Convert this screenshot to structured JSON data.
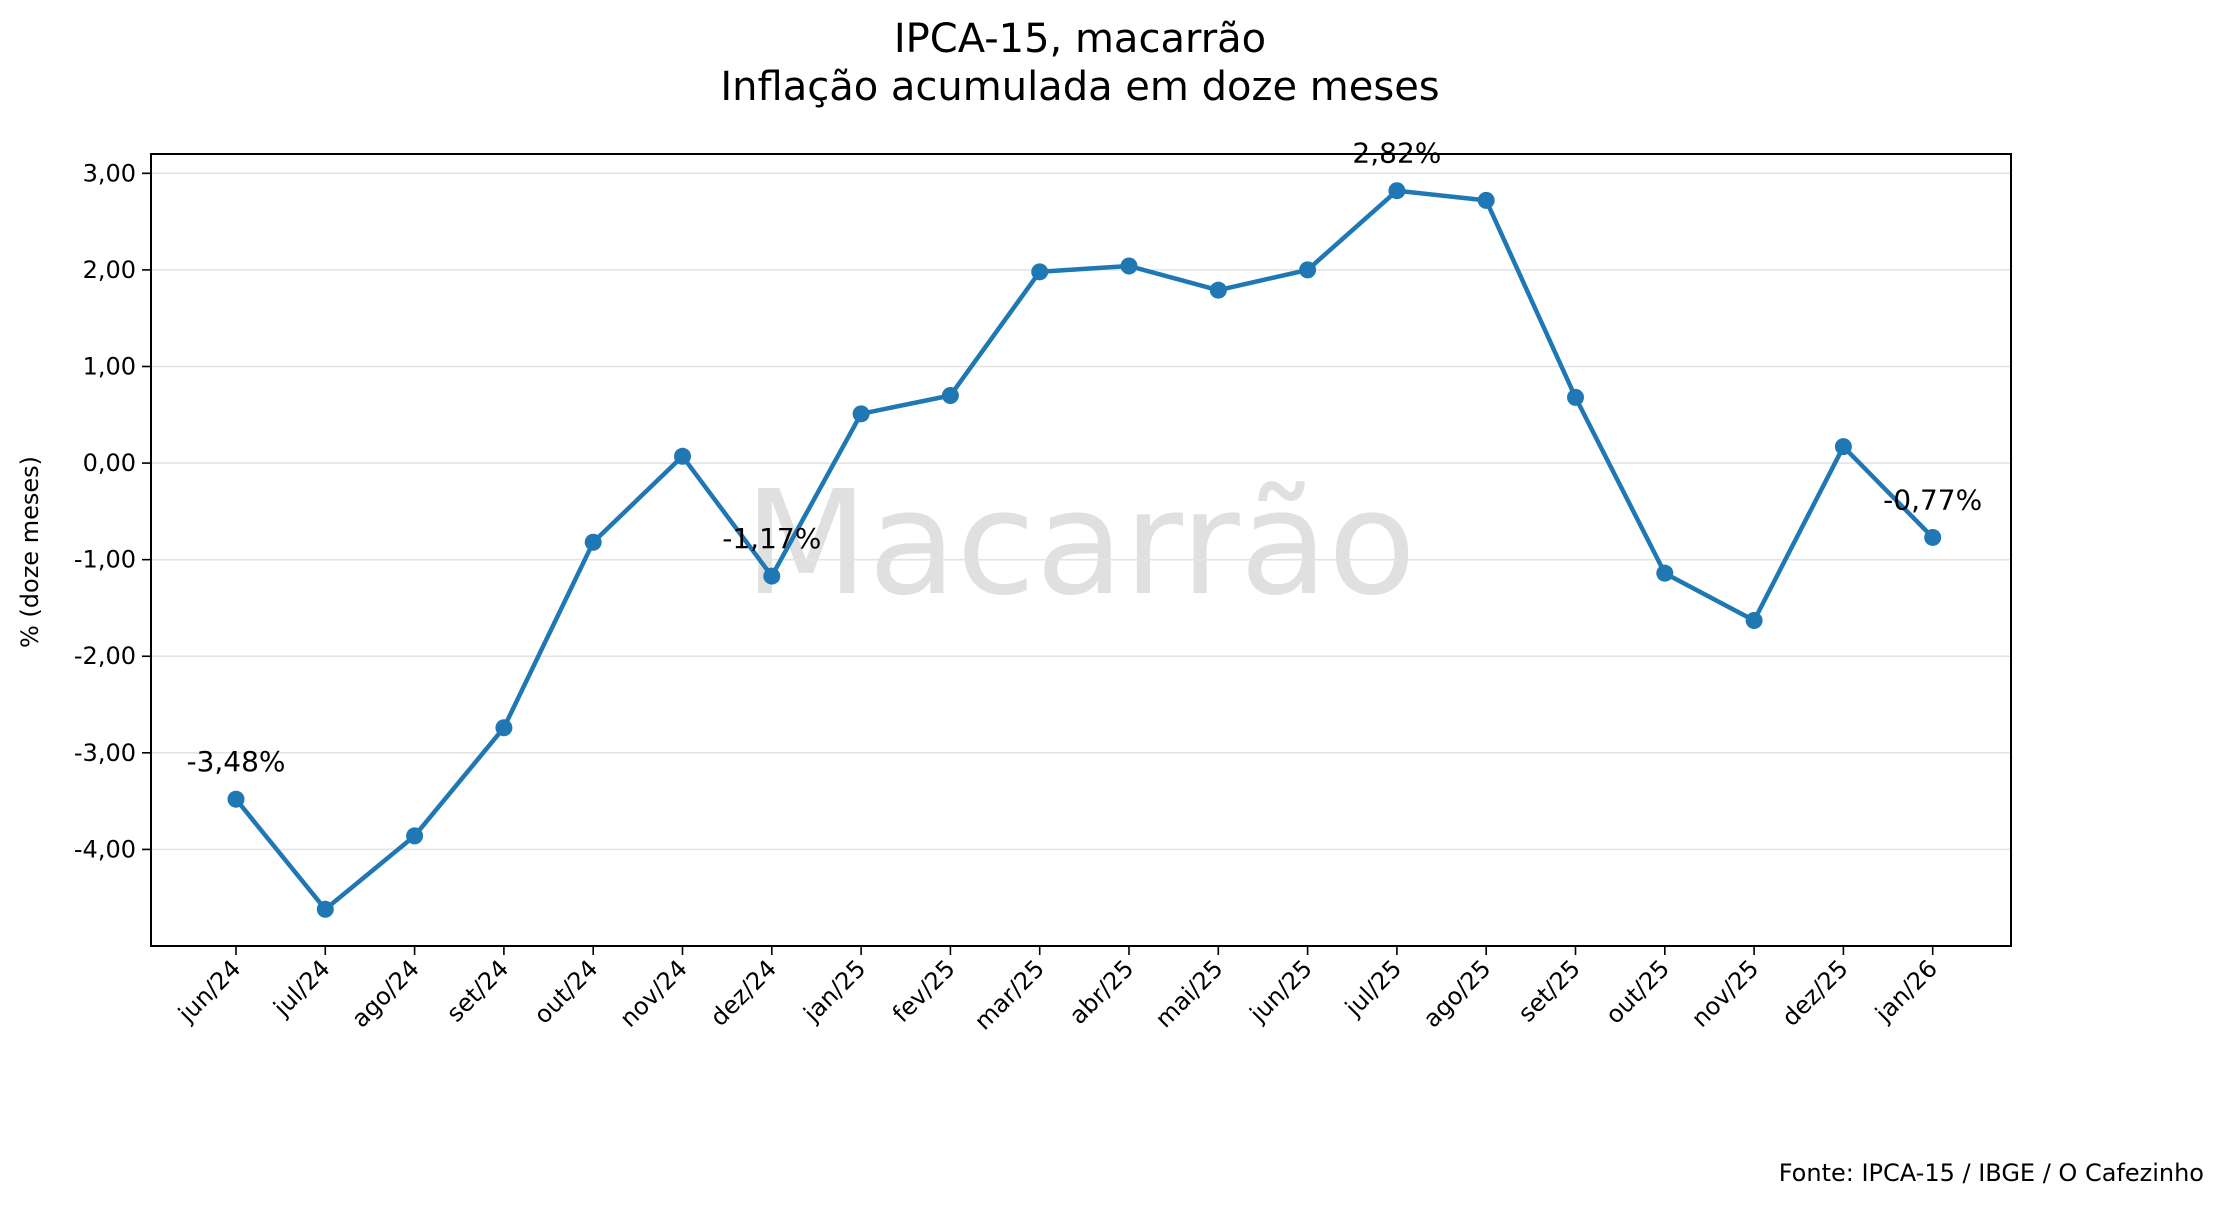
{
  "chart_data": {
    "type": "line",
    "title": "IPCA-15, macarrão",
    "subtitle": "Inflação acumulada em doze meses",
    "ylabel": "% (doze meses)",
    "xlabel": "",
    "watermark": "Macarrão",
    "source": "Fonte: IPCA-15 / IBGE / O Cafezinho",
    "ylim": [
      -5.0,
      3.2
    ],
    "yticks": [
      3.0,
      2.0,
      1.0,
      0.0,
      -1.0,
      -2.0,
      -3.0,
      -4.0
    ],
    "ytick_labels": [
      "3,00",
      "2,00",
      "1,00",
      "0,00",
      "-1,00",
      "-2,00",
      "-3,00",
      "-4,00"
    ],
    "grid": "horizontal",
    "line_color": "#1f77b4",
    "categories": [
      "jun/24",
      "jul/24",
      "ago/24",
      "set/24",
      "out/24",
      "nov/24",
      "dez/24",
      "jan/25",
      "fev/25",
      "mar/25",
      "abr/25",
      "mai/25",
      "jun/25",
      "jul/25",
      "ago/25",
      "set/25",
      "out/25",
      "nov/25",
      "dez/25",
      "jan/26"
    ],
    "values": [
      -3.48,
      -4.62,
      -3.86,
      -2.74,
      -0.82,
      0.07,
      -1.17,
      0.51,
      0.7,
      1.98,
      2.04,
      1.79,
      2.0,
      2.82,
      2.72,
      0.68,
      -1.14,
      -1.63,
      0.17,
      -0.77
    ],
    "annotations": [
      {
        "index": 0,
        "text": "-3,48%"
      },
      {
        "index": 6,
        "text": "-1,17%"
      },
      {
        "index": 13,
        "text": "2,82%"
      },
      {
        "index": 19,
        "text": "-0,77%"
      }
    ]
  }
}
